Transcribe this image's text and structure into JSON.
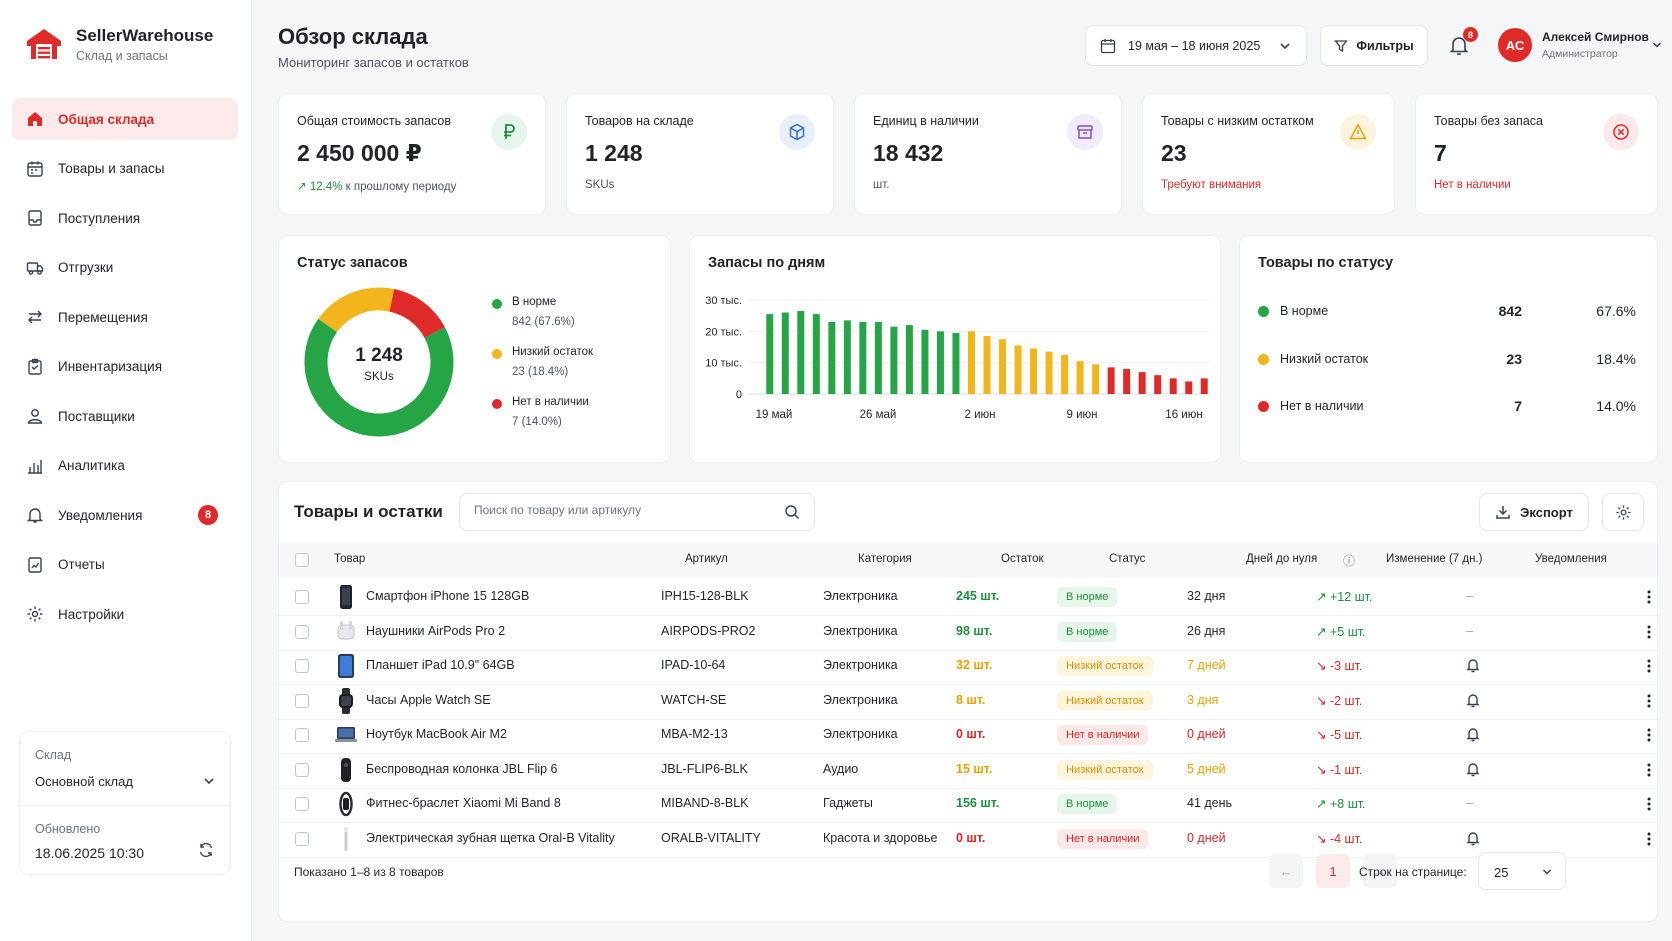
{
  "brand": {
    "name": "SellerWarehouse",
    "subtitle": "Склад и запасы",
    "icon": "warehouse-icon",
    "color": "#e02a2a"
  },
  "sidebar": {
    "items": [
      {
        "label": "Общая склада",
        "icon": "home-icon",
        "active": true
      },
      {
        "label": "Товары и запасы",
        "icon": "calendar-box-icon"
      },
      {
        "label": "Поступления",
        "icon": "inbox-icon"
      },
      {
        "label": "Отгрузки",
        "icon": "truck-icon"
      },
      {
        "label": "Перемещения",
        "icon": "transfer-icon"
      },
      {
        "label": "Инвентаризация",
        "icon": "clipboard-icon"
      },
      {
        "label": "Поставщики",
        "icon": "users-icon"
      },
      {
        "label": "Аналитика",
        "icon": "bar-chart-icon"
      },
      {
        "label": "Уведомления",
        "icon": "bell-icon",
        "badge": "8"
      },
      {
        "label": "Отчеты",
        "icon": "report-icon"
      },
      {
        "label": "Настройки",
        "icon": "gear-icon"
      }
    ],
    "warehouse": {
      "label": "Склад",
      "value": "Основной склад"
    },
    "updated": {
      "label": "Обновлено",
      "value": "18.06.2025 10:30"
    }
  },
  "header": {
    "title": "Обзор склада",
    "subtitle": "Мониторинг запасов и остатков",
    "date_range": "19 мая – 18 июня 2025",
    "filters_label": "Фильтры",
    "notifications_count": "8",
    "user": {
      "initials": "АС",
      "name": "Алексей Смирнов",
      "role": "Администратор"
    }
  },
  "kpis": [
    {
      "label": "Общая стоимость запасов",
      "value": "2 450 000 ₽",
      "trend": "12.4%",
      "sub": "к прошлому периоду",
      "icon": "ruble-icon",
      "color": "#1e8e3e"
    },
    {
      "label": "Товаров на складе",
      "value": "1 248",
      "sub": "SKUs",
      "icon": "cube-icon",
      "color": "#2f6fd6"
    },
    {
      "label": "Единиц в наличии",
      "value": "18 432",
      "sub": "шт.",
      "icon": "archive-icon",
      "color": "#7c4ddc"
    },
    {
      "label": "Товары с низким остатком",
      "value": "23",
      "sub": "Требуют внимания",
      "icon": "warning-icon",
      "color": "#e8a200"
    },
    {
      "label": "Товары без запаса",
      "value": "7",
      "sub": "Нет в наличии",
      "icon": "x-circle-icon",
      "color": "#e02a2a"
    }
  ],
  "stock_status": {
    "title": "Статус запасов",
    "center_value": "1 248",
    "center_label": "SKUs",
    "legend": [
      {
        "name": "В норме",
        "value": "842 (67.6%)",
        "color": "#26a547"
      },
      {
        "name": "Низкий остаток",
        "value": "23 (18.4%)",
        "color": "#f2b51b"
      },
      {
        "name": "Нет в наличии",
        "value": "7 (14.0%)",
        "color": "#e02a2a"
      }
    ]
  },
  "chart_data": {
    "type": "bar",
    "title": "Запасы по дням",
    "x_tick_labels": [
      "19 май",
      "26 май",
      "2 июн",
      "9 июн",
      "16 июн"
    ],
    "y_tick_labels": [
      "30 тыс.",
      "20 тыс.",
      "10 тыс.",
      "0"
    ],
    "ylim": [
      0,
      30000
    ],
    "grid": true,
    "status_colors": {
      "normal": "#26a547",
      "low": "#f2b51b",
      "out": "#e02a2a"
    },
    "values": [
      25500,
      26000,
      26500,
      25500,
      23000,
      23500,
      23000,
      23000,
      21500,
      22000,
      20500,
      20000,
      19500,
      20000,
      18500,
      17500,
      15500,
      14500,
      13500,
      12500,
      10500,
      9500,
      8500,
      8000,
      7000,
      6000,
      5000,
      4000,
      5000
    ],
    "status": [
      "normal",
      "normal",
      "normal",
      "normal",
      "normal",
      "normal",
      "normal",
      "normal",
      "normal",
      "normal",
      "normal",
      "normal",
      "normal",
      "low",
      "low",
      "low",
      "low",
      "low",
      "low",
      "low",
      "low",
      "low",
      "out",
      "out",
      "out",
      "out",
      "out",
      "out",
      "out"
    ]
  },
  "status_summary": {
    "title": "Товары по статусу",
    "rows": [
      {
        "name": "В норме",
        "count": "842",
        "pct": "67.6%",
        "color": "#26a547"
      },
      {
        "name": "Низкий остаток",
        "count": "23",
        "pct": "18.4%",
        "color": "#f2b51b"
      },
      {
        "name": "Нет в наличии",
        "count": "7",
        "pct": "14.0%",
        "color": "#e02a2a"
      }
    ]
  },
  "table": {
    "title": "Товары и остатки",
    "search_placeholder": "Поиск по товару или артикулу",
    "export_label": "Экспорт",
    "columns": [
      "Товар",
      "Артикул",
      "Категория",
      "Остаток",
      "Статус",
      "Дней до нуля",
      "Изменение (7 дн.)",
      "Уведомления"
    ],
    "rows": [
      {
        "name": "Смартфон iPhone 15 128GB",
        "sku": "IPH15-128-BLK",
        "category": "Электроника",
        "stock": "245 шт.",
        "status": "В норме",
        "level": "ok",
        "days": "32 дня",
        "change": "+12 шт.",
        "dir": "up",
        "notify": "–",
        "thumb": "phone"
      },
      {
        "name": "Наушники AirPods Pro 2",
        "sku": "AIRPODS-PRO2",
        "category": "Электроника",
        "stock": "98 шт.",
        "status": "В норме",
        "level": "ok",
        "days": "26 дня",
        "change": "+5 шт.",
        "dir": "up",
        "notify": "–",
        "thumb": "earbuds"
      },
      {
        "name": "Планшет iPad 10.9\" 64GB",
        "sku": "IPAD-10-64",
        "category": "Электроника",
        "stock": "32 шт.",
        "status": "Низкий остаток",
        "level": "low",
        "days": "7 дней",
        "change": "-3 шт.",
        "dir": "down",
        "notify": "bell",
        "thumb": "tablet"
      },
      {
        "name": "Часы Apple Watch SE",
        "sku": "WATCH-SE",
        "category": "Электроника",
        "stock": "8 шт.",
        "status": "Низкий остаток",
        "level": "low",
        "days": "3 дня",
        "change": "-2 шт.",
        "dir": "down",
        "notify": "bell",
        "thumb": "watch"
      },
      {
        "name": "Ноутбук MacBook Air M2",
        "sku": "MBA-M2-13",
        "category": "Электроника",
        "stock": "0 шт.",
        "status": "Нет в наличии",
        "level": "out",
        "days": "0 дней",
        "change": "-5 шт.",
        "dir": "down",
        "notify": "bell",
        "thumb": "laptop"
      },
      {
        "name": "Беспроводная колонка JBL Flip 6",
        "sku": "JBL-FLIP6-BLK",
        "category": "Аудио",
        "stock": "15 шт.",
        "status": "Низкий остаток",
        "level": "low",
        "days": "5 дней",
        "change": "-1 шт.",
        "dir": "down",
        "notify": "bell",
        "thumb": "speaker"
      },
      {
        "name": "Фитнес-браслет Xiaomi Mi Band 8",
        "sku": "MIBAND-8-BLK",
        "category": "Гаджеты",
        "stock": "156 шт.",
        "status": "В норме",
        "level": "ok",
        "days": "41 день",
        "change": "+8 шт.",
        "dir": "up",
        "notify": "–",
        "thumb": "band"
      },
      {
        "name": "Электрическая зубная щетка Oral-B Vitality",
        "sku": "ORALB-VITALITY",
        "category": "Красота и здоровье",
        "stock": "0 шт.",
        "status": "Нет в наличии",
        "level": "out",
        "days": "0 дней",
        "change": "-4 шт.",
        "dir": "down",
        "notify": "bell",
        "thumb": "toothbrush"
      }
    ],
    "footer": "Показано 1–8 из 8 товаров",
    "page": "1",
    "rows_per_page_label": "Строк на странице:",
    "rows_per_page": "25"
  }
}
